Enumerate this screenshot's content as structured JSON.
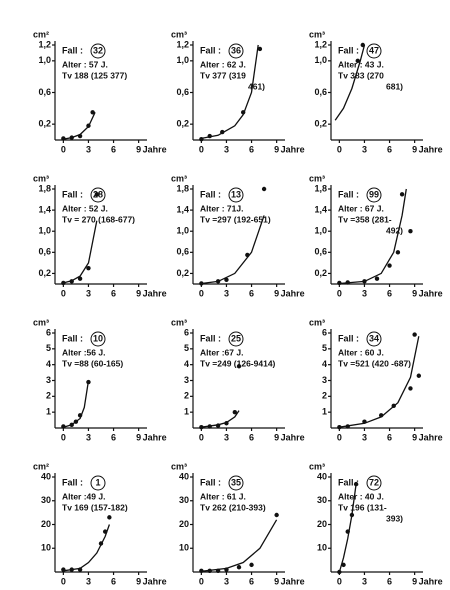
{
  "chart_data": [
    {
      "type": "scatter",
      "ylabel": "cm²",
      "xlabel": "Jahre",
      "fall_label": "Fall :",
      "case": "32",
      "annotations": [
        "Alter : 57 J.",
        "Tv 188 (125 377)"
      ],
      "color": "#111",
      "xlim": [
        -1,
        10
      ],
      "xticks": [
        0,
        3,
        6,
        9
      ],
      "ylim": [
        0,
        1.2
      ],
      "yticks": [
        {
          "value": 0.2,
          "label": "0,2"
        },
        {
          "value": 0.6,
          "label": "0,6"
        },
        {
          "value": 1.0,
          "label": "1,0"
        },
        {
          "value": 1.2,
          "label": "1,2"
        }
      ],
      "points": {
        "x": [
          0,
          1,
          2,
          3,
          3.5
        ],
        "y": [
          0.02,
          0.03,
          0.05,
          0.18,
          0.35
        ]
      },
      "curve": {
        "x": [
          0,
          1,
          2,
          3,
          3.8
        ],
        "y": [
          0.01,
          0.03,
          0.07,
          0.17,
          0.35
        ]
      }
    },
    {
      "type": "scatter",
      "ylabel": "cm³",
      "xlabel": "Jahre",
      "fall_label": "Fall :",
      "case": "36",
      "annotations": [
        "Alter : 62 J.",
        "Tv 377 (319",
        "461)"
      ],
      "color": "#111",
      "xlim": [
        -1,
        10
      ],
      "xticks": [
        0,
        3,
        6,
        9
      ],
      "ylim": [
        0,
        1.2
      ],
      "yticks": [
        {
          "value": 0.2,
          "label": "0,2"
        },
        {
          "value": 0.6,
          "label": "0,6"
        },
        {
          "value": 1.0,
          "label": "1,0"
        },
        {
          "value": 1.2,
          "label": "1,2"
        }
      ],
      "points": {
        "x": [
          0,
          1,
          2.5,
          5,
          7
        ],
        "y": [
          0.01,
          0.05,
          0.1,
          0.35,
          1.15
        ]
      },
      "curve": {
        "x": [
          0,
          2,
          4,
          5,
          6,
          6.8
        ],
        "y": [
          0.02,
          0.06,
          0.18,
          0.32,
          0.6,
          1.2
        ]
      }
    },
    {
      "type": "scatter",
      "ylabel": "cm³",
      "xlabel": "Jahre",
      "fall_label": "Fall :",
      "case": "47",
      "annotations": [
        "Alter : 43 J.",
        "Tv 383 (270",
        "681)"
      ],
      "color": "#111",
      "xlim": [
        -1,
        10
      ],
      "xticks": [
        0,
        3,
        6,
        9
      ],
      "ylim": [
        0,
        1.2
      ],
      "yticks": [
        {
          "value": 0.2,
          "label": "0,2"
        },
        {
          "value": 0.6,
          "label": "0,6"
        },
        {
          "value": 1.0,
          "label": "1,0"
        },
        {
          "value": 1.2,
          "label": "1,2"
        }
      ],
      "points": {
        "x": [
          2.2,
          2.8
        ],
        "y": [
          1.0,
          1.2
        ]
      },
      "curve": {
        "x": [
          -0.5,
          0.5,
          1.5,
          2.5,
          3
        ],
        "y": [
          0.25,
          0.4,
          0.65,
          1.0,
          1.2
        ]
      }
    },
    {
      "type": "scatter",
      "ylabel": "cm³",
      "xlabel": "Jahre",
      "fall_label": "Fall :",
      "case": "28",
      "annotations": [
        "Alter : 52 J.",
        "Tv = 270 (168-677)"
      ],
      "color": "#111",
      "xlim": [
        -1,
        10
      ],
      "xticks": [
        0,
        3,
        6,
        9
      ],
      "ylim": [
        0,
        1.8
      ],
      "yticks": [
        {
          "value": 0.2,
          "label": "0,2"
        },
        {
          "value": 0.6,
          "label": "0,6"
        },
        {
          "value": 1.0,
          "label": "1,0"
        },
        {
          "value": 1.4,
          "label": "1,4"
        },
        {
          "value": 1.8,
          "label": "1,8"
        }
      ],
      "points": {
        "x": [
          0,
          1,
          2,
          3,
          4
        ],
        "y": [
          0.02,
          0.05,
          0.1,
          0.3,
          1.7
        ]
      },
      "curve": {
        "x": [
          0,
          1,
          2,
          3,
          4
        ],
        "y": [
          0.02,
          0.06,
          0.15,
          0.4,
          1.2
        ]
      }
    },
    {
      "type": "scatter",
      "ylabel": "cm³",
      "xlabel": "Jahre",
      "fall_label": "Fall :",
      "case": "13",
      "annotations": [
        "Alter : 71J.",
        "Tv =297 (192-651)"
      ],
      "color": "#111",
      "xlim": [
        -1,
        10
      ],
      "xticks": [
        0,
        3,
        6,
        9
      ],
      "ylim": [
        0,
        1.8
      ],
      "yticks": [
        {
          "value": 0.2,
          "label": "0,2"
        },
        {
          "value": 0.6,
          "label": "0,6"
        },
        {
          "value": 1.0,
          "label": "1,0"
        },
        {
          "value": 1.4,
          "label": "1,4"
        },
        {
          "value": 1.8,
          "label": "1,8"
        }
      ],
      "points": {
        "x": [
          0,
          2,
          3,
          5.5,
          7.5
        ],
        "y": [
          0.01,
          0.05,
          0.08,
          0.55,
          1.8
        ]
      },
      "curve": {
        "x": [
          0,
          2,
          4,
          6,
          7.5
        ],
        "y": [
          0.01,
          0.05,
          0.2,
          0.6,
          1.3
        ]
      }
    },
    {
      "type": "scatter",
      "ylabel": "cm³",
      "xlabel": "Jahre",
      "fall_label": "Fall :",
      "case": "99",
      "annotations": [
        "Alter : 67 J.",
        "Tv =358 (281-",
        "492)"
      ],
      "color": "#111",
      "xlim": [
        -1,
        10
      ],
      "xticks": [
        0,
        3,
        6,
        9
      ],
      "ylim": [
        0,
        1.8
      ],
      "yticks": [
        {
          "value": 0.2,
          "label": "0,2"
        },
        {
          "value": 0.6,
          "label": "0,6"
        },
        {
          "value": 1.0,
          "label": "1,0"
        },
        {
          "value": 1.4,
          "label": "1,4"
        },
        {
          "value": 1.8,
          "label": "1,8"
        }
      ],
      "points": {
        "x": [
          0,
          1,
          3,
          4.5,
          6,
          7,
          7.5,
          8.5
        ],
        "y": [
          0.02,
          0.03,
          0.05,
          0.1,
          0.35,
          0.6,
          1.7,
          1.0
        ]
      },
      "curve": {
        "x": [
          0,
          3,
          5,
          6.5,
          7.5,
          8
        ],
        "y": [
          0.01,
          0.05,
          0.2,
          0.6,
          1.3,
          1.8
        ]
      }
    },
    {
      "type": "scatter",
      "ylabel": "cm³",
      "xlabel": "Jahre",
      "fall_label": "Fall :",
      "case": "10",
      "annotations": [
        "Alter :56 J.",
        "Tv =88 (60-165)"
      ],
      "color": "#111",
      "xlim": [
        -1,
        10
      ],
      "xticks": [
        0,
        3,
        6,
        9
      ],
      "ylim": [
        0,
        6
      ],
      "yticks": [
        1,
        2,
        3,
        4,
        5,
        6
      ],
      "points": {
        "x": [
          0,
          1,
          1.5,
          2,
          3
        ],
        "y": [
          0.1,
          0.2,
          0.4,
          0.8,
          2.9
        ]
      },
      "curve": {
        "x": [
          0,
          1,
          2,
          2.5,
          3
        ],
        "y": [
          0.05,
          0.2,
          0.6,
          1.3,
          3.0
        ]
      }
    },
    {
      "type": "scatter",
      "ylabel": "cm³",
      "xlabel": "Jahre",
      "fall_label": "Fall :",
      "case": "25",
      "annotations": [
        "Alter :67 J.",
        "Tv =249 (126-9414)"
      ],
      "color": "#111",
      "xlim": [
        -1,
        10
      ],
      "xticks": [
        0,
        3,
        6,
        9
      ],
      "ylim": [
        0,
        6
      ],
      "yticks": [
        1,
        2,
        3,
        4,
        5,
        6
      ],
      "points": {
        "x": [
          0,
          1,
          2,
          3,
          4,
          4.5
        ],
        "y": [
          0.05,
          0.1,
          0.15,
          0.3,
          1.0,
          3.9
        ]
      },
      "curve": {
        "x": [
          0,
          2,
          3,
          4,
          4.5
        ],
        "y": [
          0.05,
          0.2,
          0.35,
          0.7,
          1.1
        ]
      }
    },
    {
      "type": "scatter",
      "ylabel": "cm³",
      "xlabel": "Jahre",
      "fall_label": "Fall :",
      "case": "34",
      "annotations": [
        "Alter : 60 J.",
        "Tv =521 (420 -687)"
      ],
      "color": "#111",
      "xlim": [
        -1,
        10
      ],
      "xticks": [
        0,
        3,
        6,
        9
      ],
      "ylim": [
        0,
        6
      ],
      "yticks": [
        1,
        2,
        3,
        4,
        5,
        6
      ],
      "points": {
        "x": [
          0,
          1,
          3,
          5,
          6.5,
          8.5,
          9,
          9.5
        ],
        "y": [
          0.05,
          0.1,
          0.4,
          0.8,
          1.4,
          2.5,
          5.9,
          3.3
        ]
      },
      "curve": {
        "x": [
          0,
          3,
          5,
          7,
          8.5,
          9.5
        ],
        "y": [
          0.05,
          0.3,
          0.7,
          1.6,
          3.2,
          5.8
        ]
      }
    },
    {
      "type": "scatter",
      "ylabel": "cm²",
      "xlabel": "Jahre",
      "fall_label": "Fall :",
      "case": "1",
      "annotations": [
        "Alter :49 J.",
        "Tv 169 (157-182)"
      ],
      "color": "#111",
      "xlim": [
        -1,
        10
      ],
      "xticks": [
        0,
        3,
        6,
        9
      ],
      "ylim": [
        0,
        40
      ],
      "yticks": [
        10,
        20,
        30,
        40
      ],
      "points": {
        "x": [
          0,
          1,
          2,
          4.5,
          5,
          5.5
        ],
        "y": [
          1,
          1,
          1,
          12,
          17,
          23
        ]
      },
      "curve": {
        "x": [
          0,
          2,
          3,
          4,
          5,
          5.5
        ],
        "y": [
          0.5,
          1.5,
          4,
          8,
          15,
          20
        ]
      }
    },
    {
      "type": "scatter",
      "ylabel": "cm³",
      "xlabel": "Jahre",
      "fall_label": "Fall :",
      "case": "35",
      "annotations": [
        "Alter : 61 J.",
        "Tv 262 (210-393)"
      ],
      "color": "#111",
      "xlim": [
        -1,
        10
      ],
      "xticks": [
        0,
        3,
        6,
        9
      ],
      "ylim": [
        0,
        40
      ],
      "yticks": [
        10,
        20,
        30,
        40
      ],
      "points": {
        "x": [
          0,
          1,
          2,
          3,
          4.5,
          6,
          9
        ],
        "y": [
          0.5,
          0.5,
          0.5,
          1,
          2,
          3,
          24
        ]
      },
      "curve": {
        "x": [
          0,
          3,
          5,
          7,
          9
        ],
        "y": [
          0.3,
          1.5,
          4,
          10,
          22
        ]
      }
    },
    {
      "type": "scatter",
      "ylabel": "cm³",
      "xlabel": "Jahre",
      "fall_label": "Fall :",
      "case": "72",
      "annotations": [
        "Alter : 40 J.",
        "Tv 196 (131-",
        "393)"
      ],
      "color": "#111",
      "xlim": [
        -1,
        10
      ],
      "xticks": [
        0,
        3,
        6,
        9
      ],
      "ylim": [
        0,
        40
      ],
      "yticks": [
        10,
        20,
        30,
        40
      ],
      "points": {
        "x": [
          0,
          0.5,
          1,
          1.5,
          2
        ],
        "y": [
          0,
          3,
          17,
          24,
          37
        ]
      },
      "curve": {
        "x": [
          0,
          0.5,
          1,
          1.5,
          2
        ],
        "y": [
          0,
          6,
          14,
          24,
          37
        ]
      }
    }
  ]
}
